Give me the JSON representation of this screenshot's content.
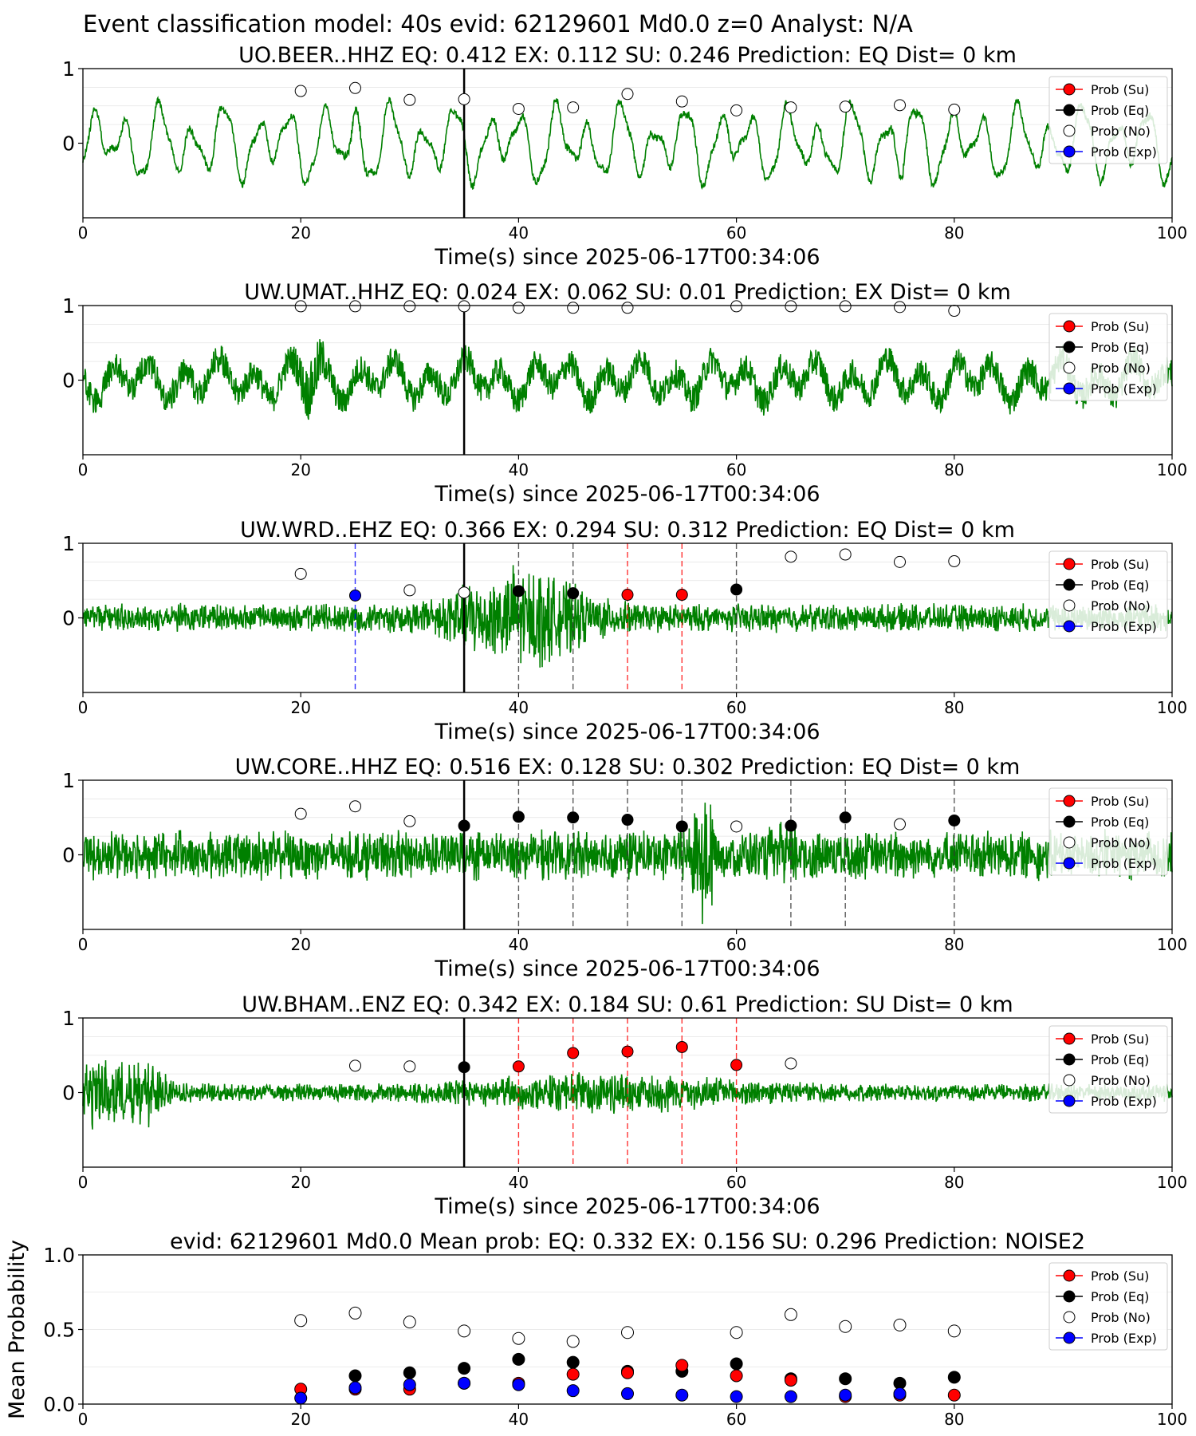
{
  "figure": {
    "suptitle": "Event classification model: 40s evid: 62129601 Md0.0 z=0 Analyst: N/A"
  },
  "legend_labels": [
    "Prob (Su)",
    "Prob (Eq)",
    "Prob (No)",
    "Prob (Exp)"
  ],
  "colors": {
    "waveform": "#008000",
    "su": "#ff0000",
    "eq": "#000000",
    "no": "#ffffff",
    "exp": "#0000ff",
    "pick_line": "#000000",
    "grid": "#d9d9d9"
  },
  "chart_data": [
    {
      "type": "line",
      "title": "UO.BEER..HHZ   EQ: 0.412  EX: 0.112  SU: 0.246   Prediction: EQ    Dist= 0 km",
      "xlabel": "Time(s) since 2025-06-17T00:34:06",
      "ylabel": "",
      "xlim": [
        0,
        100
      ],
      "ylim": [
        -1,
        1
      ],
      "x_ticks": [
        0,
        20,
        40,
        60,
        80,
        100
      ],
      "y_ticks": [
        {
          "value": 1,
          "label": "1"
        },
        {
          "value": 0,
          "label": "0"
        }
      ],
      "waveform": {
        "style": "smooth",
        "amplitude": 0.62,
        "seed": 11,
        "events": [
          {
            "t": 25,
            "amp": 1.5
          },
          {
            "t": 43,
            "amp": 1.1
          },
          {
            "t": 75,
            "amp": 1.6
          }
        ]
      },
      "pick_time": 35,
      "points": [
        {
          "t": 20,
          "p": 0.7,
          "cls": "no"
        },
        {
          "t": 25,
          "p": 0.74,
          "cls": "no"
        },
        {
          "t": 30,
          "p": 0.58,
          "cls": "no"
        },
        {
          "t": 35,
          "p": 0.59,
          "cls": "no"
        },
        {
          "t": 40,
          "p": 0.46,
          "cls": "no"
        },
        {
          "t": 45,
          "p": 0.48,
          "cls": "no"
        },
        {
          "t": 50,
          "p": 0.66,
          "cls": "no"
        },
        {
          "t": 55,
          "p": 0.56,
          "cls": "no"
        },
        {
          "t": 60,
          "p": 0.44,
          "cls": "no"
        },
        {
          "t": 65,
          "p": 0.48,
          "cls": "no"
        },
        {
          "t": 70,
          "p": 0.49,
          "cls": "no"
        },
        {
          "t": 75,
          "p": 0.51,
          "cls": "no"
        },
        {
          "t": 80,
          "p": 0.45,
          "cls": "no"
        }
      ],
      "vlines": []
    },
    {
      "type": "line",
      "title": "UW.UMAT..HHZ   EQ: 0.024  EX: 0.062  SU: 0.01    Prediction: EX    Dist= 0 km",
      "xlabel": "Time(s) since 2025-06-17T00:34:06",
      "ylabel": "",
      "xlim": [
        0,
        100
      ],
      "ylim": [
        -1,
        1
      ],
      "x_ticks": [
        0,
        20,
        40,
        60,
        80,
        100
      ],
      "y_ticks": [
        {
          "value": 1,
          "label": "1"
        },
        {
          "value": 0,
          "label": "0"
        }
      ],
      "waveform": {
        "style": "mixed",
        "amplitude": 0.42,
        "seed": 23,
        "events": [
          {
            "t": 21,
            "amp": 2.0
          }
        ]
      },
      "pick_time": 35,
      "points": [
        {
          "t": 20,
          "p": 0.99,
          "cls": "no"
        },
        {
          "t": 25,
          "p": 0.99,
          "cls": "no"
        },
        {
          "t": 30,
          "p": 0.99,
          "cls": "no"
        },
        {
          "t": 35,
          "p": 0.99,
          "cls": "no"
        },
        {
          "t": 40,
          "p": 0.97,
          "cls": "no"
        },
        {
          "t": 45,
          "p": 0.97,
          "cls": "no"
        },
        {
          "t": 50,
          "p": 0.97,
          "cls": "no"
        },
        {
          "t": 60,
          "p": 0.99,
          "cls": "no"
        },
        {
          "t": 65,
          "p": 0.99,
          "cls": "no"
        },
        {
          "t": 70,
          "p": 0.99,
          "cls": "no"
        },
        {
          "t": 75,
          "p": 0.98,
          "cls": "no"
        },
        {
          "t": 80,
          "p": 0.93,
          "cls": "no"
        }
      ],
      "vlines": []
    },
    {
      "type": "line",
      "title": "UW.WRD..EHZ   EQ: 0.366  EX: 0.294  SU: 0.312   Prediction: EQ    Dist= 0 km",
      "xlabel": "Time(s) since 2025-06-17T00:34:06",
      "ylabel": "",
      "xlim": [
        0,
        100
      ],
      "ylim": [
        -1,
        1
      ],
      "x_ticks": [
        0,
        20,
        40,
        60,
        80,
        100
      ],
      "y_ticks": [
        {
          "value": 1,
          "label": "1"
        },
        {
          "value": 0,
          "label": "0"
        }
      ],
      "waveform": {
        "style": "noise",
        "amplitude": 0.17,
        "seed": 37,
        "events": [
          {
            "t": 40,
            "amp": 3.8,
            "dur": 6
          }
        ]
      },
      "pick_time": 35,
      "points": [
        {
          "t": 20,
          "p": 0.59,
          "cls": "no"
        },
        {
          "t": 25,
          "p": 0.3,
          "cls": "exp"
        },
        {
          "t": 30,
          "p": 0.37,
          "cls": "no"
        },
        {
          "t": 35,
          "p": 0.34,
          "cls": "no"
        },
        {
          "t": 40,
          "p": 0.36,
          "cls": "eq"
        },
        {
          "t": 45,
          "p": 0.33,
          "cls": "eq"
        },
        {
          "t": 50,
          "p": 0.31,
          "cls": "su"
        },
        {
          "t": 55,
          "p": 0.31,
          "cls": "su"
        },
        {
          "t": 60,
          "p": 0.38,
          "cls": "eq"
        },
        {
          "t": 65,
          "p": 0.82,
          "cls": "no"
        },
        {
          "t": 70,
          "p": 0.85,
          "cls": "no"
        },
        {
          "t": 75,
          "p": 0.75,
          "cls": "no"
        },
        {
          "t": 80,
          "p": 0.76,
          "cls": "no"
        }
      ],
      "vlines": [
        {
          "t": 25,
          "cls": "exp"
        },
        {
          "t": 40,
          "cls": "eq"
        },
        {
          "t": 45,
          "cls": "eq"
        },
        {
          "t": 50,
          "cls": "su"
        },
        {
          "t": 55,
          "cls": "su"
        },
        {
          "t": 60,
          "cls": "eq"
        }
      ]
    },
    {
      "type": "line",
      "title": "UW.CORE..HHZ   EQ: 0.516  EX: 0.128  SU: 0.302   Prediction: EQ    Dist= 0 km",
      "xlabel": "Time(s) since 2025-06-17T00:34:06",
      "ylabel": "",
      "xlim": [
        0,
        100
      ],
      "ylim": [
        -1,
        1
      ],
      "x_ticks": [
        0,
        20,
        40,
        60,
        80,
        100
      ],
      "y_ticks": [
        {
          "value": 1,
          "label": "1"
        },
        {
          "value": 0,
          "label": "0"
        }
      ],
      "waveform": {
        "style": "noise",
        "amplitude": 0.3,
        "seed": 53,
        "events": [
          {
            "t": 57,
            "amp": 3.2,
            "dur": 1
          },
          {
            "t": 65,
            "amp": 1.6,
            "dur": 1.5
          }
        ]
      },
      "pick_time": 35,
      "points": [
        {
          "t": 20,
          "p": 0.55,
          "cls": "no"
        },
        {
          "t": 25,
          "p": 0.65,
          "cls": "no"
        },
        {
          "t": 30,
          "p": 0.45,
          "cls": "no"
        },
        {
          "t": 35,
          "p": 0.39,
          "cls": "eq"
        },
        {
          "t": 40,
          "p": 0.51,
          "cls": "eq"
        },
        {
          "t": 45,
          "p": 0.5,
          "cls": "eq"
        },
        {
          "t": 50,
          "p": 0.47,
          "cls": "eq"
        },
        {
          "t": 55,
          "p": 0.38,
          "cls": "eq"
        },
        {
          "t": 60,
          "p": 0.38,
          "cls": "no"
        },
        {
          "t": 65,
          "p": 0.39,
          "cls": "eq"
        },
        {
          "t": 70,
          "p": 0.5,
          "cls": "eq"
        },
        {
          "t": 75,
          "p": 0.41,
          "cls": "no"
        },
        {
          "t": 80,
          "p": 0.46,
          "cls": "eq"
        }
      ],
      "vlines": [
        {
          "t": 40,
          "cls": "eq"
        },
        {
          "t": 45,
          "cls": "eq"
        },
        {
          "t": 50,
          "cls": "eq"
        },
        {
          "t": 55,
          "cls": "eq"
        },
        {
          "t": 65,
          "cls": "eq"
        },
        {
          "t": 70,
          "cls": "eq"
        },
        {
          "t": 80,
          "cls": "eq"
        }
      ]
    },
    {
      "type": "line",
      "title": "UW.BHAM..ENZ   EQ: 0.342  EX: 0.184  SU: 0.61    Prediction: SU    Dist= 0 km",
      "xlabel": "Time(s) since 2025-06-17T00:34:06",
      "ylabel": "",
      "xlim": [
        0,
        100
      ],
      "ylim": [
        -1,
        1
      ],
      "x_ticks": [
        0,
        20,
        40,
        60,
        80,
        100
      ],
      "y_ticks": [
        {
          "value": 1,
          "label": "1"
        },
        {
          "value": 0,
          "label": "0"
        }
      ],
      "waveform": {
        "style": "noise",
        "amplitude": 0.11,
        "seed": 71,
        "events": [
          {
            "t": 1,
            "amp": 4.5,
            "dur": 5
          },
          {
            "t": 6,
            "amp": 2.5,
            "dur": 2
          },
          {
            "t": 48,
            "amp": 2.4,
            "dur": 12
          }
        ]
      },
      "pick_time": 35,
      "points": [
        {
          "t": 25,
          "p": 0.36,
          "cls": "no"
        },
        {
          "t": 30,
          "p": 0.35,
          "cls": "no"
        },
        {
          "t": 35,
          "p": 0.34,
          "cls": "eq"
        },
        {
          "t": 40,
          "p": 0.35,
          "cls": "su"
        },
        {
          "t": 45,
          "p": 0.53,
          "cls": "su"
        },
        {
          "t": 50,
          "p": 0.55,
          "cls": "su"
        },
        {
          "t": 55,
          "p": 0.61,
          "cls": "su"
        },
        {
          "t": 60,
          "p": 0.37,
          "cls": "su"
        },
        {
          "t": 65,
          "p": 0.39,
          "cls": "no"
        }
      ],
      "vlines": [
        {
          "t": 40,
          "cls": "su"
        },
        {
          "t": 45,
          "cls": "su"
        },
        {
          "t": 50,
          "cls": "su"
        },
        {
          "t": 55,
          "cls": "su"
        },
        {
          "t": 60,
          "cls": "su"
        }
      ]
    },
    {
      "type": "scatter",
      "title": "evid: 62129601  Md0.0   Mean prob:   EQ: 0.332  EX: 0.156  SU: 0.296   Prediction: NOISE2",
      "xlabel": "",
      "ylabel": "Mean Probability",
      "xlim": [
        0,
        100
      ],
      "ylim": [
        0,
        1
      ],
      "x_ticks": [
        0,
        20,
        40,
        60,
        80,
        100
      ],
      "y_ticks": [
        {
          "value": 1,
          "label": "1.0"
        },
        {
          "value": 0.5,
          "label": "0.5"
        },
        {
          "value": 0,
          "label": "0.0"
        }
      ],
      "legend": "top-right",
      "series": [
        {
          "name": "Prob (No)",
          "cls": "no",
          "x": [
            20,
            25,
            30,
            35,
            40,
            45,
            50,
            60,
            65,
            70,
            75,
            80
          ],
          "y": [
            0.56,
            0.61,
            0.55,
            0.49,
            0.44,
            0.42,
            0.48,
            0.48,
            0.6,
            0.52,
            0.53,
            0.49
          ]
        },
        {
          "name": "Prob (Eq)",
          "cls": "eq",
          "x": [
            25,
            30,
            35,
            40,
            45,
            50,
            55,
            60,
            65,
            70,
            75,
            80
          ],
          "y": [
            0.19,
            0.21,
            0.24,
            0.3,
            0.28,
            0.22,
            0.22,
            0.27,
            0.17,
            0.17,
            0.14,
            0.18
          ]
        },
        {
          "name": "Prob (Su)",
          "cls": "su",
          "x": [
            20,
            25,
            30,
            35,
            40,
            45,
            50,
            55,
            60,
            65,
            70,
            75,
            80
          ],
          "y": [
            0.1,
            0.1,
            0.1,
            0.14,
            0.14,
            0.2,
            0.21,
            0.26,
            0.19,
            0.16,
            0.05,
            0.06,
            0.06
          ]
        },
        {
          "name": "Prob (Exp)",
          "cls": "exp",
          "x": [
            20,
            25,
            30,
            35,
            40,
            45,
            50,
            55,
            60,
            65,
            70,
            75
          ],
          "y": [
            0.04,
            0.11,
            0.13,
            0.14,
            0.13,
            0.09,
            0.07,
            0.06,
            0.05,
            0.05,
            0.06,
            0.07
          ]
        }
      ]
    }
  ]
}
